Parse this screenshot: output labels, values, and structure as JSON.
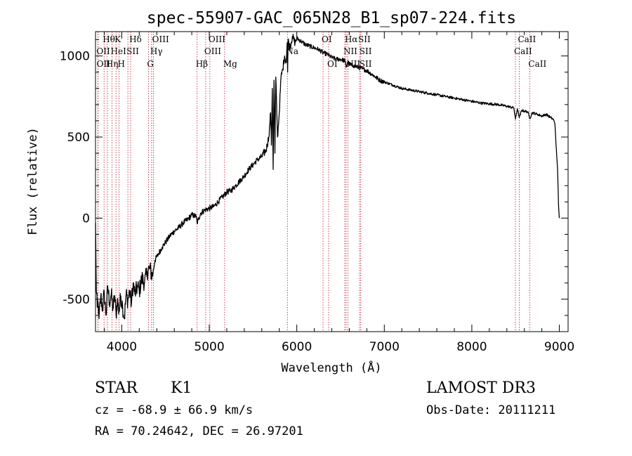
{
  "chart_data": {
    "type": "line",
    "title": "spec-55907-GAC_065N28_B1_sp07-224.fits",
    "xlabel": "Wavelength (Å)",
    "ylabel": "Flux (relative)",
    "xlim": [
      3700,
      9100
    ],
    "ylim": [
      -700,
      1150
    ],
    "xticks": [
      4000,
      5000,
      6000,
      7000,
      8000,
      9000
    ],
    "yticks": [
      -500,
      0,
      500,
      1000
    ],
    "series": [
      {
        "name": "flux",
        "x": [
          3700,
          3710,
          3720,
          3730,
          3740,
          3760,
          3780,
          3800,
          3820,
          3840,
          3860,
          3880,
          3900,
          3920,
          3935,
          3950,
          3968,
          3990,
          4010,
          4030,
          4050,
          4070,
          4090,
          4110,
          4130,
          4150,
          4180,
          4200,
          4230,
          4260,
          4290,
          4320,
          4350,
          4380,
          4420,
          4460,
          4500,
          4550,
          4600,
          4650,
          4700,
          4750,
          4800,
          4850,
          4861,
          4900,
          4950,
          5000,
          5050,
          5100,
          5150,
          5200,
          5250,
          5300,
          5350,
          5400,
          5450,
          5500,
          5550,
          5600,
          5650,
          5680,
          5700,
          5710,
          5720,
          5730,
          5740,
          5750,
          5760,
          5780,
          5800,
          5820,
          5840,
          5860,
          5880,
          5890,
          5895,
          5900,
          5920,
          5950,
          5980,
          6000,
          6050,
          6100,
          6150,
          6200,
          6250,
          6300,
          6350,
          6400,
          6450,
          6500,
          6550,
          6563,
          6580,
          6600,
          6650,
          6700,
          6750,
          6800,
          6850,
          6900,
          6950,
          7000,
          7100,
          7200,
          7300,
          7400,
          7500,
          7600,
          7700,
          7800,
          7900,
          8000,
          8100,
          8200,
          8300,
          8400,
          8480,
          8498,
          8520,
          8542,
          8570,
          8600,
          8640,
          8662,
          8690,
          8750,
          8800,
          8850,
          8900,
          8930,
          8950,
          8970,
          8980,
          8990,
          9000
        ],
        "values": [
          -30,
          -450,
          -550,
          -520,
          -620,
          -480,
          -560,
          -460,
          -600,
          -420,
          -520,
          -470,
          -560,
          -480,
          -600,
          -500,
          -580,
          -480,
          -540,
          -620,
          -470,
          -510,
          -450,
          -530,
          -400,
          -470,
          -420,
          -450,
          -370,
          -400,
          -330,
          -310,
          -360,
          -260,
          -220,
          -180,
          -150,
          -110,
          -80,
          -60,
          -30,
          -10,
          20,
          10,
          -30,
          30,
          50,
          60,
          70,
          100,
          130,
          160,
          170,
          200,
          230,
          260,
          300,
          330,
          360,
          380,
          420,
          500,
          650,
          450,
          800,
          300,
          850,
          400,
          870,
          500,
          650,
          870,
          920,
          1000,
          960,
          1080,
          900,
          1100,
          1050,
          1120,
          1080,
          1110,
          1090,
          1070,
          1060,
          1050,
          1040,
          1020,
          1010,
          990,
          980,
          980,
          970,
          930,
          960,
          950,
          940,
          930,
          920,
          910,
          890,
          870,
          850,
          840,
          820,
          800,
          790,
          780,
          770,
          760,
          750,
          740,
          730,
          720,
          710,
          705,
          700,
          690,
          680,
          610,
          675,
          620,
          665,
          660,
          655,
          615,
          650,
          640,
          630,
          640,
          620,
          610,
          580,
          380,
          300,
          90,
          0
        ]
      }
    ],
    "line_markers": [
      {
        "name": "Hθ",
        "wave": 3798,
        "row": 0
      },
      {
        "name": "OII",
        "wave": 3727,
        "row": 1
      },
      {
        "name": "OII",
        "wave": 3729,
        "row": 2
      },
      {
        "name": "Hη",
        "wave": 3835,
        "row": 2
      },
      {
        "name": "HeI",
        "wave": 3889,
        "row": 1
      },
      {
        "name": "K",
        "wave": 3934,
        "row": 0
      },
      {
        "name": "SII",
        "wave": 4070,
        "row": 1
      },
      {
        "name": "H",
        "wave": 3969,
        "row": 2
      },
      {
        "name": "Hδ",
        "wave": 4102,
        "row": 0
      },
      {
        "name": "OIII",
        "wave": 4363,
        "row": 0
      },
      {
        "name": "Hγ",
        "wave": 4341,
        "row": 1
      },
      {
        "name": "G",
        "wave": 4305,
        "row": 2
      },
      {
        "name": "Hβ",
        "wave": 4861,
        "row": 2
      },
      {
        "name": "OIII",
        "wave": 4959,
        "row": 1
      },
      {
        "name": "OIII",
        "wave": 5007,
        "row": 0
      },
      {
        "name": "Mg",
        "wave": 5175,
        "row": 2
      },
      {
        "name": "Na",
        "wave": 5893,
        "row": 1
      },
      {
        "name": "OI",
        "wave": 6300,
        "row": 0
      },
      {
        "name": "OI",
        "wave": 6364,
        "row": 2
      },
      {
        "name": "Hα",
        "wave": 6563,
        "row": 0
      },
      {
        "name": "NII",
        "wave": 6548,
        "row": 1
      },
      {
        "name": "NII",
        "wave": 6583,
        "row": 2
      },
      {
        "name": "SII",
        "wave": 6717,
        "row": 0
      },
      {
        "name": "SII",
        "wave": 6731,
        "row": 1
      },
      {
        "name": "SII",
        "wave": 6731,
        "row": 2
      },
      {
        "name": "CaII",
        "wave": 8542,
        "row": 0
      },
      {
        "name": "CaII",
        "wave": 8498,
        "row": 1
      },
      {
        "name": "CaII",
        "wave": 8662,
        "row": 2
      }
    ],
    "line_color": "#c8102e"
  },
  "info": {
    "object_class": "STAR",
    "subclass": "K1",
    "survey": "LAMOST DR3",
    "redshift": "cz = -68.9 ± 66.9 km/s",
    "obs_date": "Obs-Date: 20111211",
    "coords": "RA =  70.24642, DEC =  26.97201"
  }
}
